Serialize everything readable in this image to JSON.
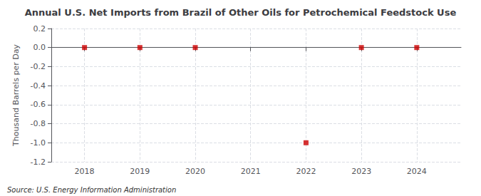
{
  "chart_data": {
    "type": "scatter",
    "title": "Annual U.S. Net Imports from Brazil of Other Oils for Petrochemical Feedstock Use",
    "y_label": "Thousand Barrels per Day",
    "source": "Source: U.S. Energy Information Administration",
    "x": [
      2018,
      2019,
      2020,
      2022,
      2023,
      2024
    ],
    "values": [
      0.0,
      0.0,
      0.0,
      -1.0,
      0.0,
      0.0
    ],
    "color": "#cc0000",
    "marker": "square",
    "xlim": [
      2017.4,
      2024.8
    ],
    "xticks": [
      2018,
      2019,
      2020,
      2021,
      2022,
      2023,
      2024
    ],
    "ylim": [
      -1.2,
      0.2
    ],
    "yticks": [
      -1.2,
      {
        "value": -1.0,
        "label": "-1.0"
      },
      -0.8,
      -0.6,
      -0.4,
      -0.2,
      {
        "value": 0.0,
        "label": "0.0"
      },
      0.2
    ],
    "grid": true
  }
}
